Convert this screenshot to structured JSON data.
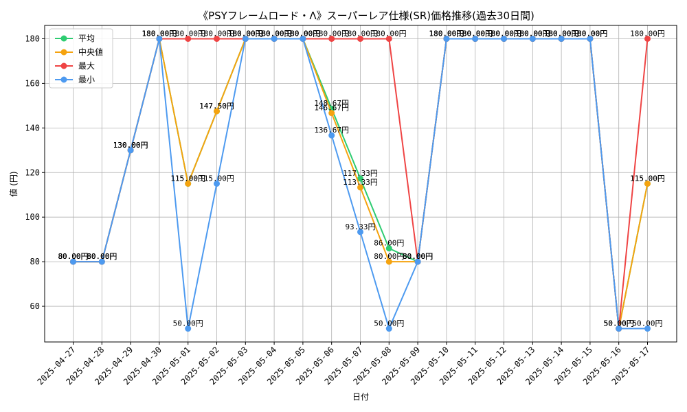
{
  "chart_data": {
    "type": "line",
    "title": "《PSYフレームロード・Λ》スーパーレア仕様(SR)価格推移(過去30日間)",
    "xlabel": "日付",
    "ylabel": "値 (円)",
    "ylim": [
      44,
      186
    ],
    "yticks": [
      60,
      80,
      100,
      120,
      140,
      160,
      180
    ],
    "grid": true,
    "legend_position": "top-left",
    "categories": [
      "2025-04-27",
      "2025-04-28",
      "2025-04-29",
      "2025-04-30",
      "2025-05-01",
      "2025-05-02",
      "2025-05-03",
      "2025-05-04",
      "2025-05-05",
      "2025-05-06",
      "2025-05-07",
      "2025-05-08",
      "2025-05-09",
      "2025-05-10",
      "2025-05-11",
      "2025-05-12",
      "2025-05-13",
      "2025-05-14",
      "2025-05-15",
      "2025-05-16",
      "2025-05-17"
    ],
    "series": [
      {
        "name": "平均",
        "color": "#2ecc71",
        "values": [
          80,
          80,
          130,
          180,
          115,
          147.5,
          180,
          180,
          180,
          148.67,
          117.33,
          86,
          80,
          180,
          180,
          180,
          180,
          180,
          180,
          50,
          115
        ]
      },
      {
        "name": "中央値",
        "color": "#f5a30f",
        "values": [
          80,
          80,
          130,
          180,
          115,
          147.5,
          180,
          180,
          180,
          146.67,
          113.33,
          80,
          80,
          180,
          180,
          180,
          180,
          180,
          180,
          50,
          115
        ]
      },
      {
        "name": "最大",
        "color": "#ef4444",
        "values": [
          80,
          80,
          130,
          180,
          180,
          180,
          180,
          180,
          180,
          180,
          180,
          180,
          80,
          180,
          180,
          180,
          180,
          180,
          180,
          50,
          180
        ]
      },
      {
        "name": "最小",
        "color": "#4d9af0",
        "values": [
          80,
          80,
          130,
          180,
          50,
          115,
          180,
          180,
          180,
          136.67,
          93.33,
          50,
          80,
          180,
          180,
          180,
          180,
          180,
          180,
          50,
          50
        ]
      }
    ],
    "value_suffix": "円"
  }
}
